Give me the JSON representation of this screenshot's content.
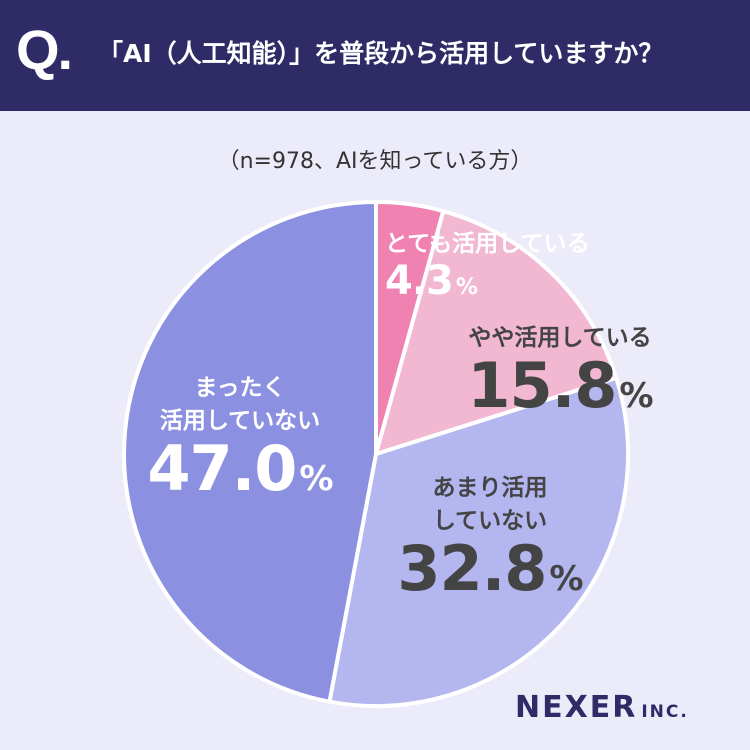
{
  "header": {
    "q_mark": "Q.",
    "question": "「AI（人工知能）」を普段から活用していますか？"
  },
  "sample_note": "（n=978、AIを知っている方）",
  "logo": {
    "name": "NEXER",
    "suffix": "INC."
  },
  "chart_data": {
    "type": "pie",
    "title": "「AI（人工知能）」を普段から活用していますか？",
    "subtitle": "（n=978、AIを知っている方）",
    "unit": "%",
    "slices": [
      {
        "label": "とても活用している",
        "label_lines": [
          "とても活用している"
        ],
        "value": 4.3,
        "value_text": "4.3",
        "color": "#ef82b1",
        "text_color": "#ffffff"
      },
      {
        "label": "やや活用している",
        "label_lines": [
          "やや活用している"
        ],
        "value": 15.8,
        "value_text": "15.8",
        "color": "#f2b7d1",
        "text_color": "#444444"
      },
      {
        "label": "あまり活用していない",
        "label_lines": [
          "あまり活用",
          "していない"
        ],
        "value": 32.8,
        "value_text": "32.8",
        "color": "#b3b6ef",
        "text_color": "#444444"
      },
      {
        "label": "まったく活用していない",
        "label_lines": [
          "まったく",
          "活用していない"
        ],
        "value": 47.0,
        "value_text": "47.0",
        "color": "#8b90e1",
        "text_color": "#ffffff"
      }
    ]
  }
}
